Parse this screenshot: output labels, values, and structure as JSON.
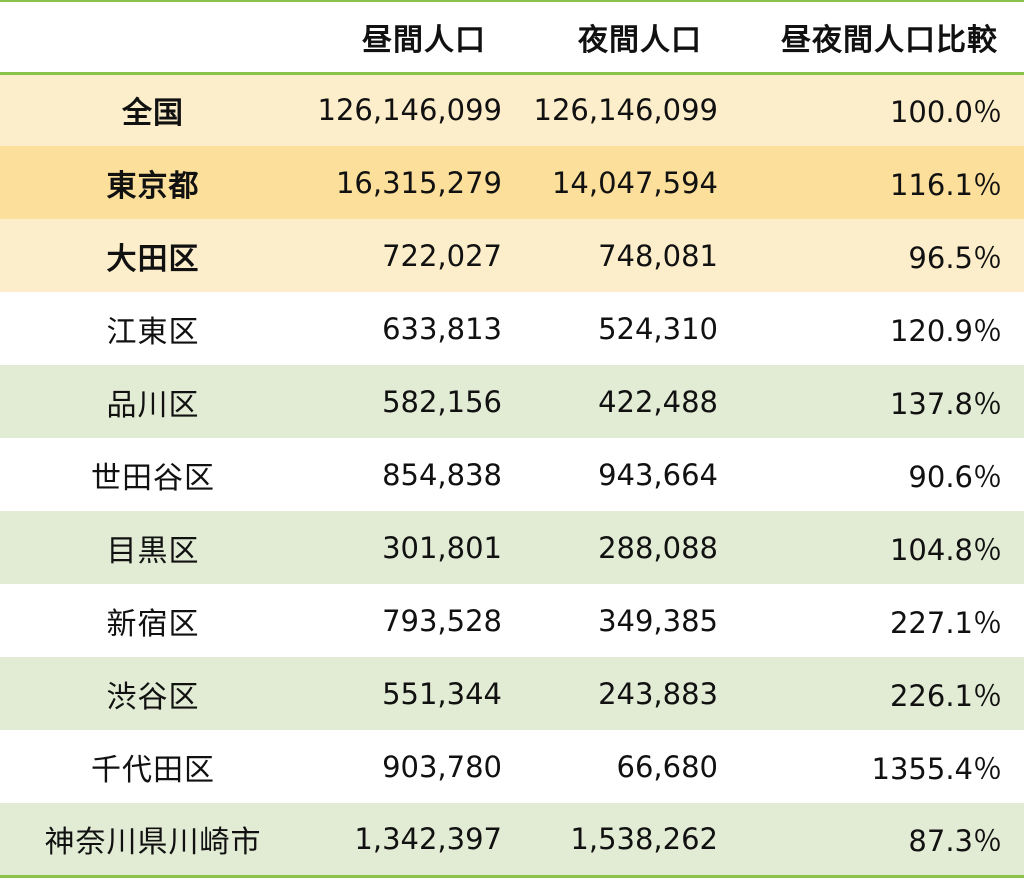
{
  "header": {
    "col_name": "",
    "col_day": "昼間人口",
    "col_night": "夜間人口",
    "col_ratio": "昼夜間人口比較"
  },
  "rows": [
    {
      "name": "全国",
      "day": "126,146,099",
      "night": "126,146,099",
      "ratio": "100.0％",
      "bold": true,
      "bg": "#fdeecb"
    },
    {
      "name": "東京都",
      "day": "16,315,279",
      "night": "14,047,594",
      "ratio": "116.1％",
      "bold": true,
      "bg": "#fbdf9a"
    },
    {
      "name": "大田区",
      "day": "722,027",
      "night": "748,081",
      "ratio": "96.5％",
      "bold": true,
      "bg": "#fdeecb"
    },
    {
      "name": "江東区",
      "day": "633,813",
      "night": "524,310",
      "ratio": "120.9％",
      "bold": false,
      "bg": "#ffffff"
    },
    {
      "name": "品川区",
      "day": "582,156",
      "night": "422,488",
      "ratio": "137.8％",
      "bold": false,
      "bg": "#e2ecd5"
    },
    {
      "name": "世田谷区",
      "day": "854,838",
      "night": "943,664",
      "ratio": "90.6％",
      "bold": false,
      "bg": "#ffffff"
    },
    {
      "name": "目黒区",
      "day": "301,801",
      "night": "288,088",
      "ratio": "104.8％",
      "bold": false,
      "bg": "#e2ecd5"
    },
    {
      "name": "新宿区",
      "day": "793,528",
      "night": "349,385",
      "ratio": "227.1％",
      "bold": false,
      "bg": "#ffffff"
    },
    {
      "name": "渋谷区",
      "day": "551,344",
      "night": "243,883",
      "ratio": "226.1％",
      "bold": false,
      "bg": "#e2ecd5"
    },
    {
      "name": "千代田区",
      "day": "903,780",
      "night": "66,680",
      "ratio": "1355.4％",
      "bold": false,
      "bg": "#ffffff"
    },
    {
      "name": "神奈川県川崎市",
      "day": "1,342,397",
      "night": "1,538,262",
      "ratio": "87.3％",
      "bold": false,
      "bg": "#e2ecd5"
    }
  ],
  "colors": {
    "border": "#8bc34a",
    "highlight_light": "#fdeecb",
    "highlight_strong": "#fbdf9a",
    "stripe_green": "#e2ecd5"
  }
}
